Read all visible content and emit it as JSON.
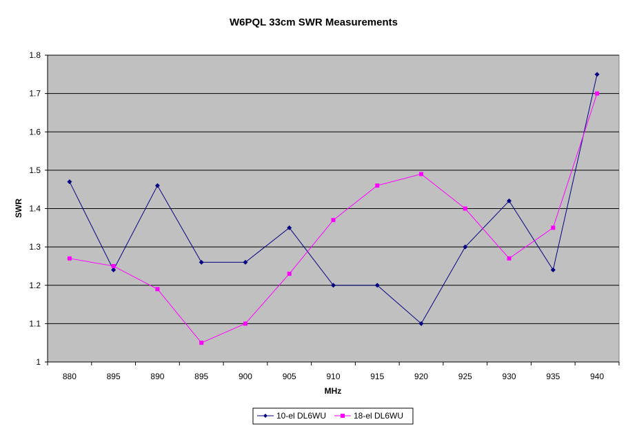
{
  "chart_data": {
    "type": "line",
    "title": "W6PQL 33cm SWR Measurements",
    "xlabel": "MHz",
    "ylabel": "SWR",
    "categories": [
      "880",
      "895",
      "890",
      "895",
      "900",
      "905",
      "910",
      "915",
      "920",
      "925",
      "930",
      "935",
      "940"
    ],
    "ylim": [
      1,
      1.8
    ],
    "yticks": [
      "1",
      "1.1",
      "1.2",
      "1.3",
      "1.4",
      "1.5",
      "1.6",
      "1.7",
      "1.8"
    ],
    "grid": "horizontal",
    "legend_position": "bottom",
    "plot_background": "#c0c0c0",
    "series": [
      {
        "name": "10-el DL6WU",
        "color": "#000080",
        "marker": "diamond",
        "values": [
          1.47,
          1.24,
          1.46,
          1.26,
          1.26,
          1.35,
          1.2,
          1.2,
          1.1,
          1.3,
          1.42,
          1.24,
          1.75
        ]
      },
      {
        "name": "18-el DL6WU",
        "color": "#ff00ff",
        "marker": "square",
        "values": [
          1.27,
          1.25,
          1.19,
          1.05,
          1.1,
          1.23,
          1.37,
          1.46,
          1.49,
          1.4,
          1.27,
          1.35,
          1.7
        ]
      }
    ]
  }
}
